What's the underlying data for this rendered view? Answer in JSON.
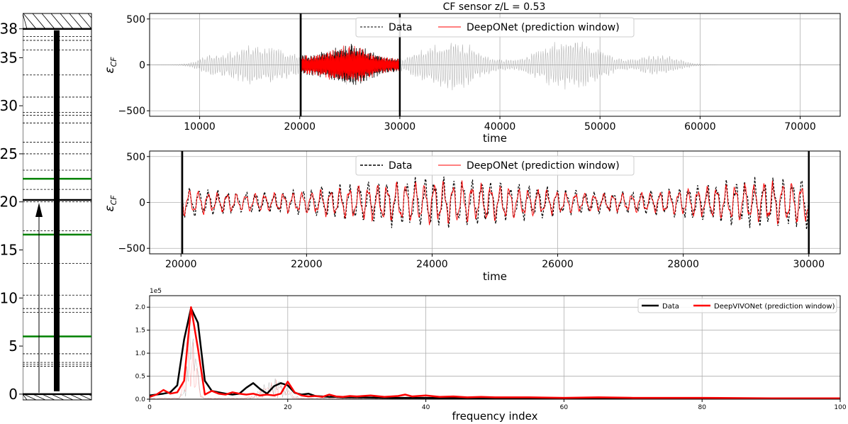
{
  "colors": {
    "data": "#000000",
    "model": "#ff0000",
    "sensor": "#008000",
    "grid": "#b0b0b0"
  },
  "chart_data": [
    {
      "type": "diagram",
      "name_hint": "riser schematic",
      "y_ticks": [
        "0",
        "5",
        "10",
        "15",
        "20",
        "25",
        "30",
        "35",
        "38"
      ],
      "ylim": [
        -0.6,
        39.6
      ],
      "riser_top": 38.0,
      "riser_bottom": 0.0,
      "marked_depth": 20.2,
      "arrow_tip": 20.2,
      "highlight_sensors": [
        6.0,
        16.6,
        22.4
      ],
      "dashed_sensors": [
        2.9,
        3.1,
        3.3,
        4.2,
        8.5,
        8.9,
        10.3,
        13.6,
        17.0,
        20.0,
        21.3,
        23.3,
        25.0,
        26.2,
        28.2,
        29.0,
        29.3,
        30.9,
        33.2,
        35.8,
        36.8,
        37.2
      ]
    },
    {
      "type": "line",
      "title": "CF sensor z/L = 0.53",
      "xlabel": "time",
      "ylabel": "ε",
      "ylabel_sub": "CF",
      "xlim": [
        5000,
        74000
      ],
      "ylim": [
        -560,
        560
      ],
      "x_ticks": [
        "10000",
        "20000",
        "30000",
        "40000",
        "50000",
        "60000",
        "70000"
      ],
      "y_ticks": [
        "500",
        "0",
        "−500"
      ],
      "window": [
        20100,
        30000
      ],
      "legend": [
        "Data",
        "DeepONet (prediction window)"
      ],
      "legend_loc": "upper center"
    },
    {
      "type": "line",
      "xlabel": "time",
      "ylabel": "ε",
      "ylabel_sub": "CF",
      "xlim": [
        19500,
        30500
      ],
      "ylim": [
        -560,
        560
      ],
      "x_ticks": [
        "20000",
        "22000",
        "24000",
        "26000",
        "28000",
        "30000"
      ],
      "y_ticks": [
        "500",
        "0",
        "−500"
      ],
      "window": [
        20020,
        30000
      ],
      "legend": [
        "Data",
        "DeepONet (prediction window)"
      ],
      "legend_loc": "upper center"
    },
    {
      "type": "line",
      "xlabel": "frequency index",
      "offset_label": "1e5",
      "xlim": [
        0,
        100
      ],
      "ylim": [
        0,
        2.25
      ],
      "x_ticks": [
        "0",
        "20",
        "40",
        "60",
        "80",
        "100"
      ],
      "y_ticks": [
        "0.0",
        "0.5",
        "1.0",
        "1.5",
        "2.0"
      ],
      "legend": [
        "Data",
        "DeepVIVONet (prediction window)"
      ],
      "legend_loc": "upper right",
      "series": [
        {
          "label_index": 0,
          "x": [
            0,
            1,
            2,
            3,
            4,
            5,
            6,
            7,
            8,
            9,
            10,
            11,
            12,
            13,
            14,
            15,
            16,
            17,
            18,
            19,
            20,
            21,
            22,
            23,
            24,
            25,
            26,
            27,
            28,
            29,
            30,
            35,
            40,
            45,
            50,
            60,
            70,
            80,
            90,
            100
          ],
          "y": [
            0.08,
            0.1,
            0.12,
            0.15,
            0.3,
            1.3,
            1.98,
            1.66,
            0.4,
            0.18,
            0.15,
            0.12,
            0.1,
            0.12,
            0.25,
            0.35,
            0.22,
            0.12,
            0.28,
            0.35,
            0.3,
            0.14,
            0.1,
            0.12,
            0.07,
            0.06,
            0.05,
            0.05,
            0.04,
            0.04,
            0.04,
            0.03,
            0.03,
            0.02,
            0.02,
            0.02,
            0.015,
            0.015,
            0.015,
            0.015
          ]
        },
        {
          "label_index": 1,
          "x": [
            0,
            1,
            2,
            3,
            4,
            5,
            6,
            7,
            8,
            9,
            10,
            11,
            12,
            13,
            14,
            15,
            16,
            17,
            18,
            19,
            20,
            21,
            22,
            23,
            24,
            25,
            26,
            27,
            28,
            29,
            30,
            32,
            34,
            36,
            37,
            38,
            40,
            42,
            44,
            46,
            48,
            50,
            55,
            60,
            65,
            70,
            80,
            90,
            100
          ],
          "y": [
            0.05,
            0.1,
            0.2,
            0.12,
            0.15,
            0.4,
            2.0,
            1.1,
            0.1,
            0.18,
            0.12,
            0.1,
            0.15,
            0.12,
            0.1,
            0.12,
            0.08,
            0.1,
            0.08,
            0.12,
            0.38,
            0.15,
            0.08,
            0.06,
            0.07,
            0.05,
            0.1,
            0.06,
            0.05,
            0.07,
            0.06,
            0.08,
            0.05,
            0.07,
            0.1,
            0.06,
            0.08,
            0.05,
            0.06,
            0.04,
            0.05,
            0.04,
            0.04,
            0.03,
            0.04,
            0.03,
            0.03,
            0.02,
            0.02
          ]
        }
      ]
    }
  ]
}
